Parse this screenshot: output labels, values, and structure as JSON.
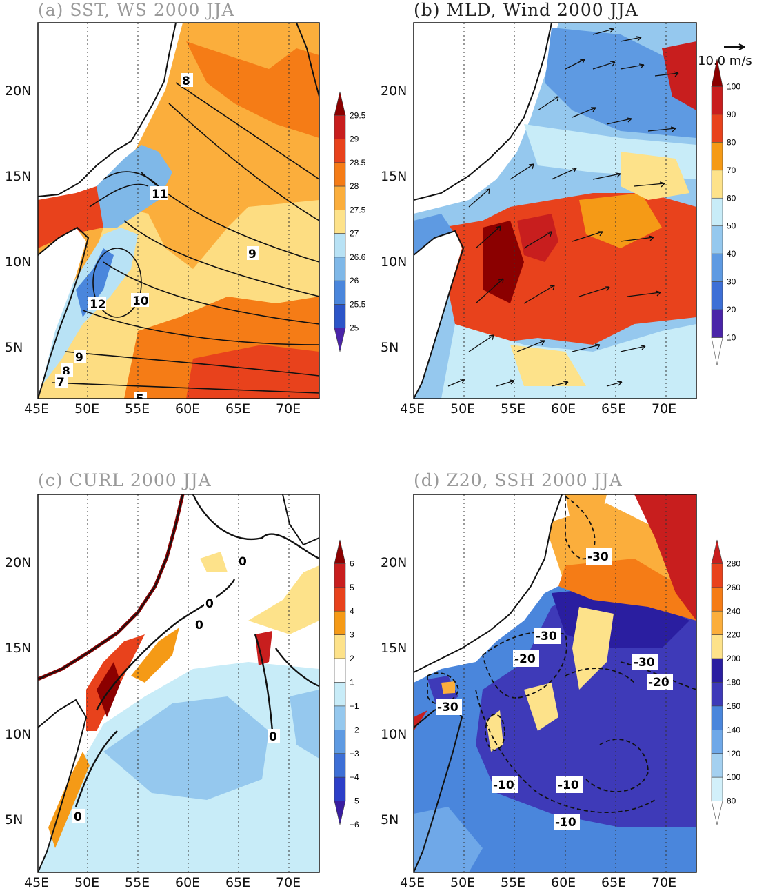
{
  "panels": [
    {
      "id": "a",
      "title": "(a) SST, WS 2000 JJA",
      "colorbar": [
        "29.5",
        "29",
        "28.5",
        "28",
        "27.5",
        "27",
        "26.6",
        "26",
        "25.5",
        "25"
      ],
      "colors": [
        "#8b0000",
        "#c81e1e",
        "#e8421c",
        "#f57c16",
        "#fbae3c",
        "#fde28a",
        "#b8e2f5",
        "#7fb8e8",
        "#4a86dc",
        "#2c55c8",
        "#4a24a8"
      ],
      "contours": [
        "8",
        "11",
        "9",
        "10",
        "12",
        "9",
        "8",
        "7",
        "5"
      ]
    },
    {
      "id": "b",
      "title": "(b) MLD, Wind 2000 JJA",
      "colorbar": [
        "100",
        "90",
        "80",
        "70",
        "60",
        "50",
        "40",
        "30",
        "20",
        "10"
      ],
      "colors": [
        "#8b0000",
        "#c81e1e",
        "#e8421c",
        "#f59a16",
        "#fde28a",
        "#c8ecf8",
        "#95c8ee",
        "#5e9ae2",
        "#3d6fd6",
        "#4a24a8",
        "#ffffff"
      ],
      "vector_label": "10.0 m/s"
    },
    {
      "id": "c",
      "title": "(c) CURL 2000 JJA",
      "colorbar": [
        "6",
        "5",
        "4",
        "3",
        "2",
        "1",
        "−1",
        "−2",
        "−3",
        "−4",
        "−5",
        "−6"
      ],
      "colors": [
        "#8b0000",
        "#c81e1e",
        "#e8421c",
        "#f59a16",
        "#fde28a",
        "#ffffff",
        "#c8ecf8",
        "#95c8ee",
        "#5e9ae2",
        "#3d6fd6",
        "#2c3fc8",
        "#3a1ea0"
      ],
      "contours": [
        "0",
        "0",
        "0",
        "0",
        "0"
      ]
    },
    {
      "id": "d",
      "title": "(d) Z20, SSH 2000 JJA",
      "colorbar": [
        "280",
        "260",
        "240",
        "220",
        "200",
        "180",
        "160",
        "140",
        "120",
        "100",
        "80"
      ],
      "colors": [
        "#c81e1e",
        "#e8421c",
        "#f57c16",
        "#fbae3c",
        "#fde28a",
        "#2a1ea0",
        "#3e3ab8",
        "#4a86dc",
        "#6fa8e8",
        "#a4d0f0",
        "#d2f0fa",
        "#ffffff"
      ],
      "contours": [
        "-30",
        "-30",
        "-20",
        "-30",
        "-20",
        "-30",
        "-10",
        "-10",
        "-10"
      ]
    }
  ],
  "axes": {
    "lon_ticks": [
      "45E",
      "50E",
      "55E",
      "60E",
      "65E",
      "70E"
    ],
    "lat_ticks": [
      "20N",
      "15N",
      "10N",
      "5N"
    ]
  }
}
